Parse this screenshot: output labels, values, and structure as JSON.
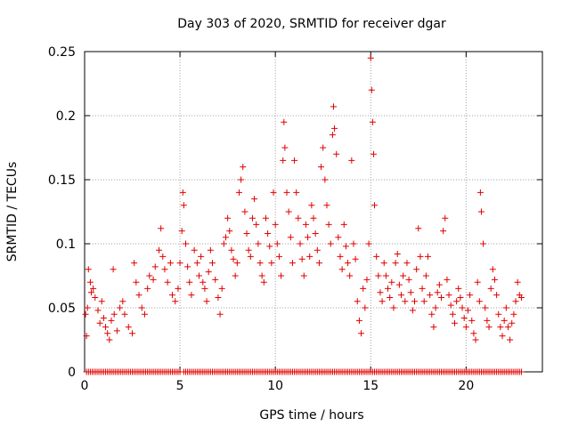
{
  "chart_data": {
    "type": "scatter",
    "title": "Day 303 of 2020, SRMTID for receiver dgar",
    "xlabel": "GPS time / hours",
    "ylabel": "SRMTID / TECUs",
    "xlim": [
      0,
      24
    ],
    "ylim": [
      0,
      0.25
    ],
    "x_ticks": [
      0,
      5,
      10,
      15,
      20
    ],
    "x_tick_labels": [
      "0",
      "5",
      "10",
      "15",
      "20"
    ],
    "y_ticks": [
      0,
      0.05,
      0.1,
      0.15,
      0.2,
      0.25
    ],
    "y_tick_labels": [
      "0",
      "0.05",
      "0.1",
      "0.15",
      "0.2",
      "0.25"
    ],
    "grid": true,
    "marker": "+",
    "color": "#e00000",
    "series": [
      {
        "name": "SRMTID",
        "points": [
          [
            0.05,
            0.045
          ],
          [
            0.1,
            0.028
          ],
          [
            0.15,
            0.05
          ],
          [
            0.2,
            0.08
          ],
          [
            0.3,
            0.07
          ],
          [
            0.35,
            0.062
          ],
          [
            0.45,
            0.065
          ],
          [
            0.55,
            0.058
          ],
          [
            0.7,
            0.048
          ],
          [
            0.8,
            0.038
          ],
          [
            0.9,
            0.055
          ],
          [
            1.0,
            0.042
          ],
          [
            1.1,
            0.035
          ],
          [
            1.2,
            0.03
          ],
          [
            1.3,
            0.025
          ],
          [
            1.4,
            0.04
          ],
          [
            1.5,
            0.08
          ],
          [
            1.55,
            0.045
          ],
          [
            1.7,
            0.032
          ],
          [
            1.85,
            0.05
          ],
          [
            2.0,
            0.055
          ],
          [
            2.1,
            0.045
          ],
          [
            2.3,
            0.035
          ],
          [
            2.5,
            0.03
          ],
          [
            2.6,
            0.085
          ],
          [
            2.7,
            0.07
          ],
          [
            2.85,
            0.06
          ],
          [
            3.0,
            0.05
          ],
          [
            3.15,
            0.045
          ],
          [
            3.3,
            0.065
          ],
          [
            3.4,
            0.075
          ],
          [
            3.6,
            0.072
          ],
          [
            3.7,
            0.082
          ],
          [
            3.9,
            0.095
          ],
          [
            4.0,
            0.112
          ],
          [
            4.1,
            0.09
          ],
          [
            4.2,
            0.08
          ],
          [
            4.35,
            0.07
          ],
          [
            4.5,
            0.085
          ],
          [
            4.6,
            0.06
          ],
          [
            4.75,
            0.055
          ],
          [
            4.9,
            0.065
          ],
          [
            5.0,
            0.085
          ],
          [
            5.1,
            0.11
          ],
          [
            5.15,
            0.14
          ],
          [
            5.2,
            0.13
          ],
          [
            5.3,
            0.1
          ],
          [
            5.4,
            0.082
          ],
          [
            5.5,
            0.07
          ],
          [
            5.6,
            0.06
          ],
          [
            5.75,
            0.095
          ],
          [
            5.9,
            0.085
          ],
          [
            6.0,
            0.075
          ],
          [
            6.1,
            0.09
          ],
          [
            6.2,
            0.07
          ],
          [
            6.3,
            0.065
          ],
          [
            6.4,
            0.055
          ],
          [
            6.5,
            0.078
          ],
          [
            6.6,
            0.095
          ],
          [
            6.7,
            0.085
          ],
          [
            6.85,
            0.072
          ],
          [
            7.0,
            0.058
          ],
          [
            7.1,
            0.045
          ],
          [
            7.2,
            0.065
          ],
          [
            7.3,
            0.1
          ],
          [
            7.4,
            0.105
          ],
          [
            7.5,
            0.12
          ],
          [
            7.6,
            0.11
          ],
          [
            7.7,
            0.095
          ],
          [
            7.8,
            0.088
          ],
          [
            7.9,
            0.075
          ],
          [
            8.0,
            0.085
          ],
          [
            8.1,
            0.14
          ],
          [
            8.2,
            0.15
          ],
          [
            8.3,
            0.16
          ],
          [
            8.4,
            0.125
          ],
          [
            8.5,
            0.108
          ],
          [
            8.6,
            0.095
          ],
          [
            8.7,
            0.09
          ],
          [
            8.8,
            0.12
          ],
          [
            8.9,
            0.135
          ],
          [
            9.0,
            0.115
          ],
          [
            9.1,
            0.1
          ],
          [
            9.2,
            0.085
          ],
          [
            9.3,
            0.075
          ],
          [
            9.4,
            0.07
          ],
          [
            9.5,
            0.12
          ],
          [
            9.6,
            0.108
          ],
          [
            9.7,
            0.098
          ],
          [
            9.8,
            0.085
          ],
          [
            9.9,
            0.14
          ],
          [
            10.0,
            0.115
          ],
          [
            10.1,
            0.1
          ],
          [
            10.2,
            0.09
          ],
          [
            10.3,
            0.075
          ],
          [
            10.4,
            0.165
          ],
          [
            10.45,
            0.195
          ],
          [
            10.5,
            0.175
          ],
          [
            10.6,
            0.14
          ],
          [
            10.7,
            0.125
          ],
          [
            10.8,
            0.105
          ],
          [
            10.9,
            0.085
          ],
          [
            11.0,
            0.165
          ],
          [
            11.1,
            0.14
          ],
          [
            11.2,
            0.12
          ],
          [
            11.3,
            0.1
          ],
          [
            11.4,
            0.088
          ],
          [
            11.5,
            0.075
          ],
          [
            11.6,
            0.115
          ],
          [
            11.7,
            0.105
          ],
          [
            11.8,
            0.09
          ],
          [
            11.9,
            0.13
          ],
          [
            12.0,
            0.12
          ],
          [
            12.1,
            0.108
          ],
          [
            12.2,
            0.095
          ],
          [
            12.3,
            0.085
          ],
          [
            12.4,
            0.16
          ],
          [
            12.5,
            0.175
          ],
          [
            12.6,
            0.15
          ],
          [
            12.7,
            0.13
          ],
          [
            12.8,
            0.115
          ],
          [
            12.9,
            0.1
          ],
          [
            13.0,
            0.185
          ],
          [
            13.05,
            0.207
          ],
          [
            13.1,
            0.19
          ],
          [
            13.2,
            0.17
          ],
          [
            13.3,
            0.105
          ],
          [
            13.4,
            0.09
          ],
          [
            13.5,
            0.08
          ],
          [
            13.6,
            0.115
          ],
          [
            13.7,
            0.098
          ],
          [
            13.8,
            0.085
          ],
          [
            13.9,
            0.075
          ],
          [
            14.0,
            0.165
          ],
          [
            14.1,
            0.1
          ],
          [
            14.2,
            0.088
          ],
          [
            14.3,
            0.055
          ],
          [
            14.4,
            0.04
          ],
          [
            14.5,
            0.03
          ],
          [
            14.6,
            0.065
          ],
          [
            14.7,
            0.05
          ],
          [
            14.8,
            0.072
          ],
          [
            14.9,
            0.1
          ],
          [
            15.0,
            0.245
          ],
          [
            15.05,
            0.22
          ],
          [
            15.1,
            0.195
          ],
          [
            15.15,
            0.17
          ],
          [
            15.2,
            0.13
          ],
          [
            15.3,
            0.09
          ],
          [
            15.4,
            0.075
          ],
          [
            15.5,
            0.062
          ],
          [
            15.6,
            0.055
          ],
          [
            15.7,
            0.085
          ],
          [
            15.8,
            0.075
          ],
          [
            15.9,
            0.065
          ],
          [
            16.0,
            0.058
          ],
          [
            16.1,
            0.07
          ],
          [
            16.2,
            0.05
          ],
          [
            16.3,
            0.085
          ],
          [
            16.4,
            0.092
          ],
          [
            16.5,
            0.068
          ],
          [
            16.6,
            0.06
          ],
          [
            16.7,
            0.075
          ],
          [
            16.8,
            0.055
          ],
          [
            16.9,
            0.085
          ],
          [
            17.0,
            0.072
          ],
          [
            17.1,
            0.062
          ],
          [
            17.2,
            0.048
          ],
          [
            17.3,
            0.055
          ],
          [
            17.4,
            0.08
          ],
          [
            17.5,
            0.112
          ],
          [
            17.6,
            0.09
          ],
          [
            17.7,
            0.065
          ],
          [
            17.8,
            0.055
          ],
          [
            17.9,
            0.075
          ],
          [
            18.0,
            0.09
          ],
          [
            18.1,
            0.06
          ],
          [
            18.2,
            0.045
          ],
          [
            18.3,
            0.035
          ],
          [
            18.4,
            0.05
          ],
          [
            18.5,
            0.062
          ],
          [
            18.6,
            0.068
          ],
          [
            18.7,
            0.058
          ],
          [
            18.8,
            0.11
          ],
          [
            18.9,
            0.12
          ],
          [
            19.0,
            0.072
          ],
          [
            19.1,
            0.06
          ],
          [
            19.2,
            0.052
          ],
          [
            19.3,
            0.045
          ],
          [
            19.4,
            0.038
          ],
          [
            19.5,
            0.055
          ],
          [
            19.6,
            0.065
          ],
          [
            19.7,
            0.058
          ],
          [
            19.8,
            0.05
          ],
          [
            19.9,
            0.042
          ],
          [
            20.0,
            0.035
          ],
          [
            20.1,
            0.048
          ],
          [
            20.2,
            0.06
          ],
          [
            20.3,
            0.04
          ],
          [
            20.4,
            0.03
          ],
          [
            20.5,
            0.025
          ],
          [
            20.6,
            0.07
          ],
          [
            20.7,
            0.055
          ],
          [
            20.75,
            0.14
          ],
          [
            20.8,
            0.125
          ],
          [
            20.9,
            0.1
          ],
          [
            21.0,
            0.05
          ],
          [
            21.1,
            0.04
          ],
          [
            21.2,
            0.035
          ],
          [
            21.3,
            0.065
          ],
          [
            21.4,
            0.08
          ],
          [
            21.5,
            0.072
          ],
          [
            21.6,
            0.06
          ],
          [
            21.7,
            0.045
          ],
          [
            21.8,
            0.035
          ],
          [
            21.9,
            0.028
          ],
          [
            22.0,
            0.04
          ],
          [
            22.1,
            0.05
          ],
          [
            22.2,
            0.035
          ],
          [
            22.3,
            0.025
          ],
          [
            22.4,
            0.038
          ],
          [
            22.5,
            0.045
          ],
          [
            22.6,
            0.055
          ],
          [
            22.7,
            0.07
          ],
          [
            22.8,
            0.06
          ],
          [
            22.9,
            0.058
          ]
        ]
      }
    ],
    "zero_series": {
      "name": "SRMTID zero values",
      "y": 0,
      "x_values": [
        0.1,
        0.2,
        0.3,
        0.4,
        0.5,
        0.6,
        0.7,
        0.8,
        0.9,
        1.0,
        1.1,
        1.2,
        1.3,
        1.4,
        1.5,
        1.6,
        1.7,
        1.8,
        1.9,
        2.0,
        2.1,
        2.2,
        2.3,
        2.4,
        2.5,
        2.6,
        2.7,
        2.8,
        2.9,
        3.0,
        3.1,
        3.2,
        3.3,
        3.4,
        3.5,
        3.6,
        3.7,
        3.8,
        3.9,
        4.0,
        4.1,
        4.2,
        4.3,
        4.4,
        4.5,
        4.6,
        4.7,
        4.8,
        4.9,
        5.0,
        5.2,
        5.3,
        5.4,
        5.5,
        5.6,
        5.7,
        5.8,
        5.9,
        6.0,
        6.1,
        6.2,
        6.3,
        6.4,
        6.5,
        6.6,
        6.7,
        6.8,
        6.9,
        7.0,
        7.1,
        7.2,
        7.3,
        7.4,
        7.5,
        7.6,
        7.7,
        7.8,
        7.9,
        8.0,
        8.1,
        8.2,
        8.3,
        8.4,
        8.5,
        8.6,
        8.7,
        8.8,
        8.9,
        9.0,
        9.1,
        9.2,
        9.3,
        9.4,
        9.5,
        9.6,
        9.7,
        9.8,
        9.9,
        10.0,
        10.1,
        10.2,
        10.3,
        10.4,
        10.5,
        10.6,
        10.7,
        10.8,
        10.9,
        11.0,
        11.1,
        11.2,
        11.3,
        11.4,
        11.5,
        11.6,
        11.7,
        11.8,
        11.9,
        12.0,
        12.1,
        12.2,
        12.3,
        12.4,
        12.5,
        12.6,
        12.7,
        12.8,
        12.9,
        13.0,
        13.1,
        13.2,
        13.3,
        13.4,
        13.5,
        13.6,
        13.7,
        13.8,
        13.9,
        14.0,
        14.1,
        14.2,
        14.3,
        14.4,
        14.5,
        14.6,
        14.7,
        14.8,
        14.9,
        15.0,
        15.1,
        15.2,
        15.3,
        15.4,
        15.5,
        15.6,
        15.7,
        15.8,
        15.9,
        16.0,
        16.1,
        16.2,
        16.3,
        16.4,
        16.5,
        16.6,
        16.7,
        16.8,
        16.9,
        17.0,
        17.1,
        17.2,
        17.3,
        17.4,
        17.5,
        17.6,
        17.7,
        17.8,
        17.9,
        18.0,
        18.1,
        18.2,
        18.3,
        18.4,
        18.5,
        18.6,
        18.7,
        18.8,
        18.9,
        19.0,
        19.1,
        19.2,
        19.3,
        19.4,
        19.5,
        19.6,
        19.7,
        19.8,
        19.9,
        20.0,
        20.1,
        20.2,
        20.3,
        20.4,
        20.5,
        20.6,
        20.7,
        20.8,
        20.9,
        21.0,
        21.1,
        21.2,
        21.3,
        21.4,
        21.5,
        21.6,
        21.7,
        21.8,
        21.9,
        22.0,
        22.1,
        22.2,
        22.3,
        22.4,
        22.5,
        22.6,
        22.7,
        22.8,
        22.9
      ]
    }
  }
}
